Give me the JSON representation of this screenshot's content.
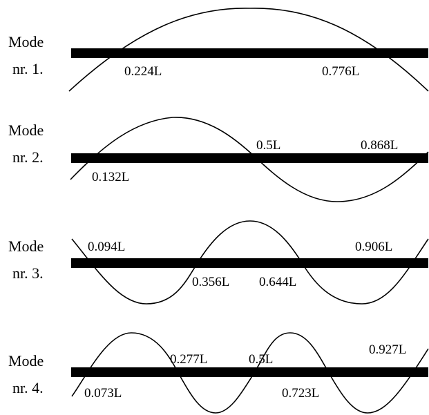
{
  "diagram": {
    "line_color": "#000000",
    "background": "#ffffff",
    "modes": [
      {
        "label_line1": "Mode",
        "label_line2": "nr. 1.",
        "nodes": [
          {
            "position": 0.224,
            "label": "0.224L"
          },
          {
            "position": 0.776,
            "label": "0.776L"
          }
        ]
      },
      {
        "label_line1": "Mode",
        "label_line2": "nr. 2.",
        "nodes": [
          {
            "position": 0.132,
            "label": "0.132L"
          },
          {
            "position": 0.5,
            "label": "0.5L"
          },
          {
            "position": 0.868,
            "label": "0.868L"
          }
        ]
      },
      {
        "label_line1": "Mode",
        "label_line2": "nr. 3.",
        "nodes": [
          {
            "position": 0.094,
            "label": "0.094L"
          },
          {
            "position": 0.356,
            "label": "0.356L"
          },
          {
            "position": 0.644,
            "label": "0.644L"
          },
          {
            "position": 0.906,
            "label": "0.906L"
          }
        ]
      },
      {
        "label_line1": "Mode",
        "label_line2": "nr. 4.",
        "nodes": [
          {
            "position": 0.073,
            "label": "0.073L"
          },
          {
            "position": 0.277,
            "label": "0.277L"
          },
          {
            "position": 0.5,
            "label": "0.5L"
          },
          {
            "position": 0.723,
            "label": "0.723L"
          },
          {
            "position": 0.927,
            "label": "0.927L"
          }
        ]
      }
    ]
  }
}
